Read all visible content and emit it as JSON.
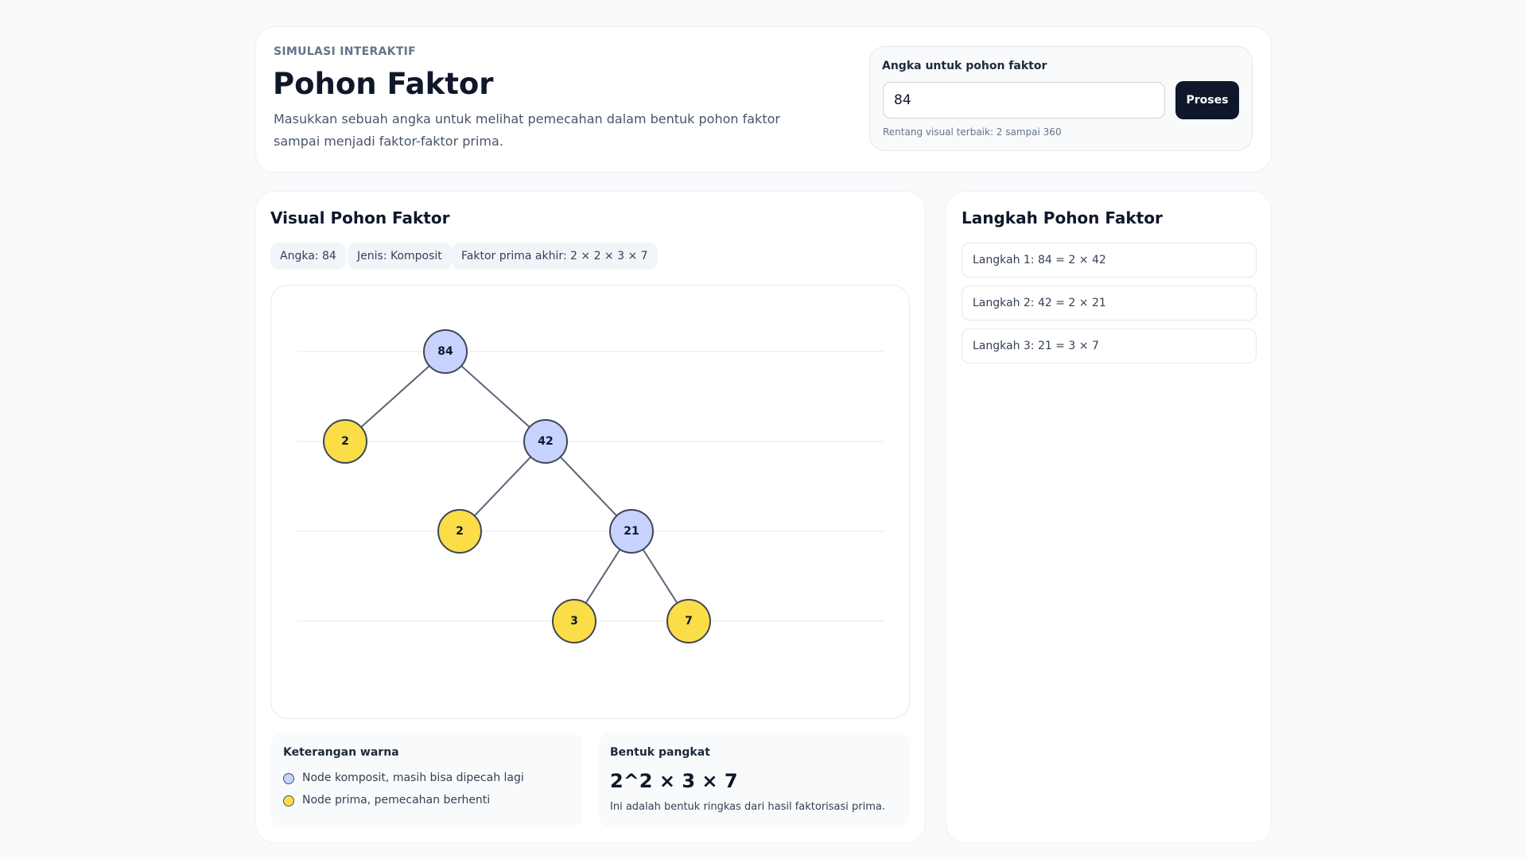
{
  "header": {
    "eyebrow": "SIMULASI INTERAKTIF",
    "title": "Pohon Faktor",
    "description": "Masukkan sebuah angka untuk melihat pemecahan dalam bentuk pohon faktor sampai menjadi faktor-faktor prima.",
    "input_label": "Angka untuk pohon faktor",
    "input_value": "84",
    "button": "Proses",
    "hint": "Rentang visual terbaik: 2 sampai 360"
  },
  "visual": {
    "title": "Visual Pohon Faktor",
    "chips": [
      "Angka: 84",
      "Jenis: Komposit",
      "Faktor prima akhir: 2 × 2 × 3 × 7"
    ],
    "tree": {
      "label": "84",
      "color": "#c7d2fe",
      "children": [
        {
          "label": "2",
          "color": "#fadd47",
          "children": []
        },
        {
          "label": "42",
          "color": "#c7d2fe",
          "children": [
            {
              "label": "2",
              "color": "#fadd47",
              "children": []
            },
            {
              "label": "21",
              "color": "#c7d2fe",
              "children": [
                {
                  "label": "3",
                  "color": "#fadd47",
                  "children": []
                },
                {
                  "label": "7",
                  "color": "#fadd47",
                  "children": []
                }
              ]
            }
          ]
        }
      ]
    },
    "legend": {
      "title": "Keterangan warna",
      "items": [
        {
          "label": "Node komposit, masih bisa dipecah lagi",
          "color": "#c7d2fe"
        },
        {
          "label": "Node prima, pemecahan berhenti",
          "color": "#fadd47"
        }
      ]
    },
    "power": {
      "title": "Bentuk pangkat",
      "expression": "2^2 × 3 × 7",
      "note": "Ini adalah bentuk ringkas dari hasil faktorisasi prima."
    }
  },
  "steps": {
    "title": "Langkah Pohon Faktor",
    "items": [
      "Langkah 1: 84 = 2 × 42",
      "Langkah 2: 42 = 2 × 21",
      "Langkah 3: 21 = 3 × 7"
    ]
  }
}
